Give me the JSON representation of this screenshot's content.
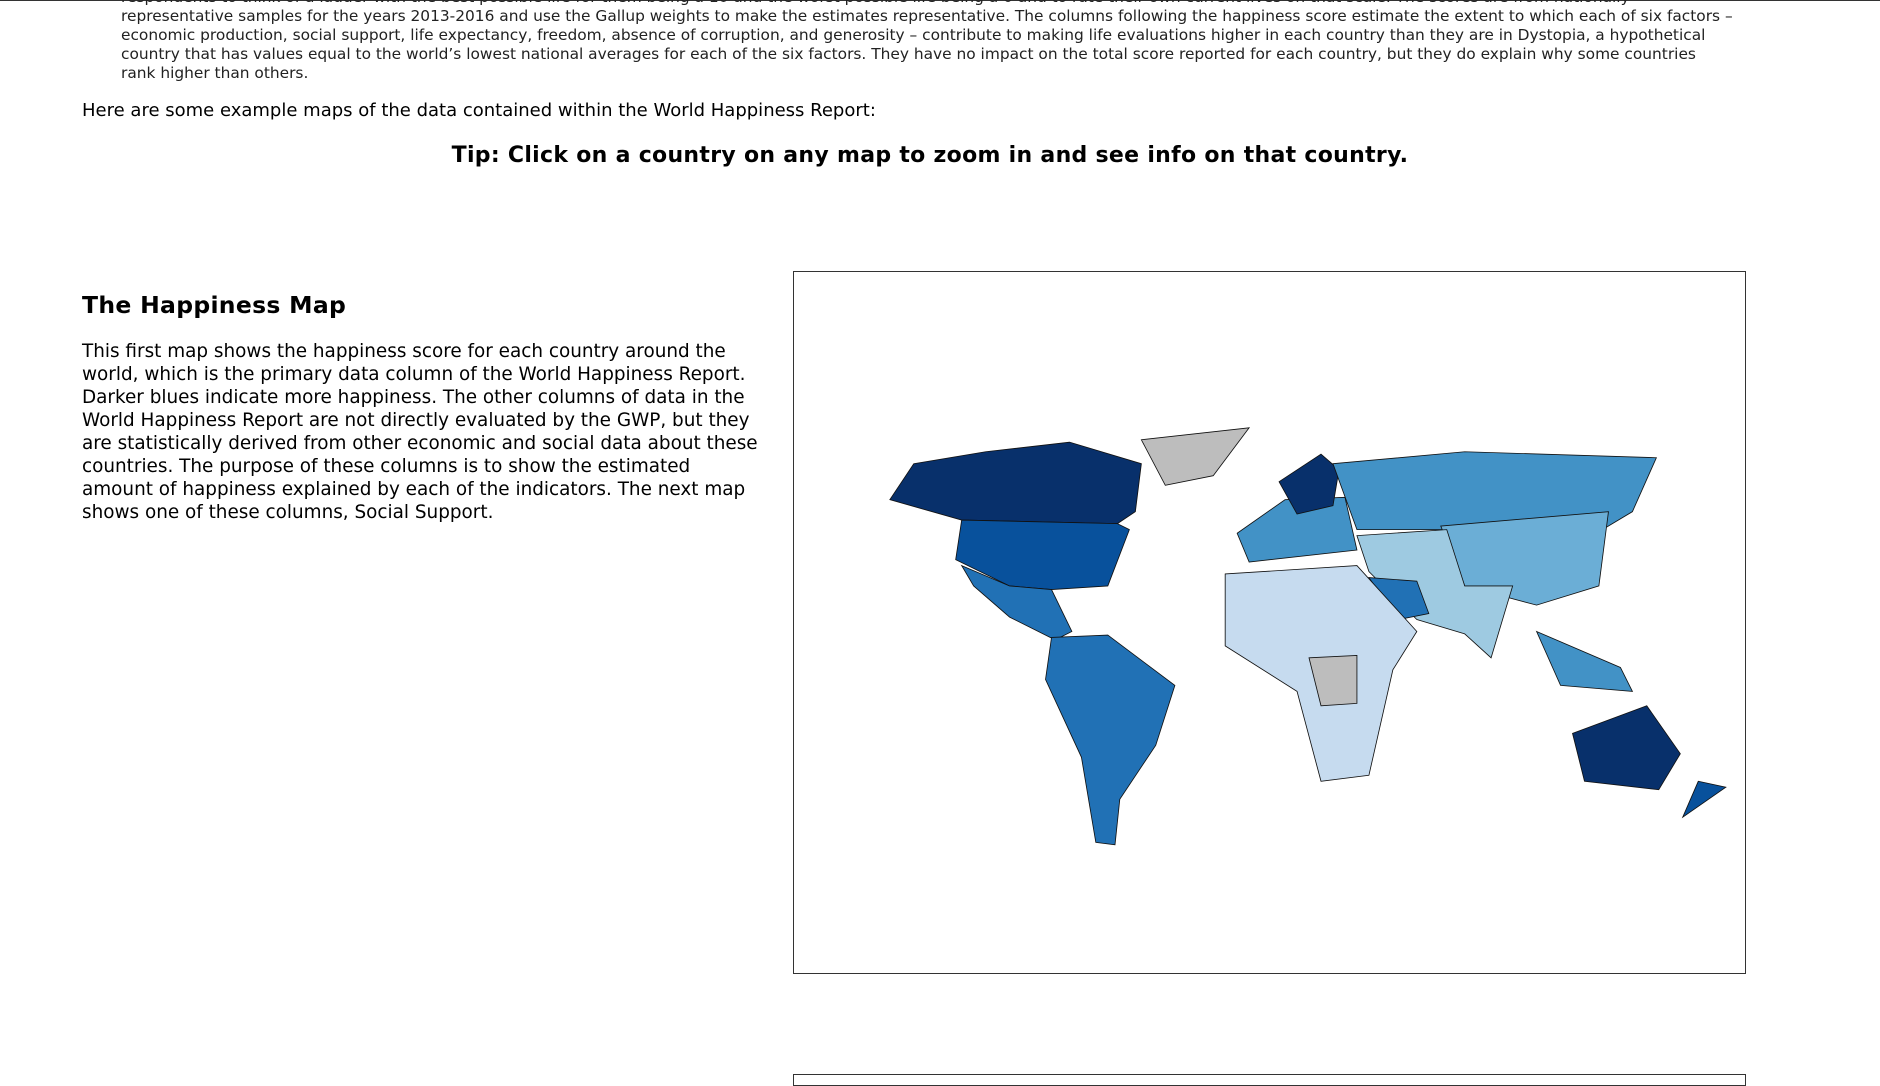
{
  "intro": {
    "text": "respondents to think of a ladder with the best possible life for them being a 10 and the worst possible life being a 0 and to rate their own current lives on that scale. The scores are from nationally representative samples for the years 2013-2016 and use the Gallup weights to make the estimates representative. The columns following the happiness score estimate the extent to which each of six factors – economic production, social support, life expectancy, freedom, absence of corruption, and generosity – contribute to making life evaluations higher in each country than they are in Dystopia, a hypothetical country that has values equal to the world’s lowest national averages for each of the six factors. They have no impact on the total score reported for each country, but they do explain why some countries rank higher than others."
  },
  "maps_intro": "Here are some example maps of the data contained within the World Happiness Report:",
  "tip": "Tip: Click on a country on any map to zoom in and see info on that country.",
  "section": {
    "heading": "The Happiness Map",
    "body": "This first map shows the happiness score for each country around the world, which is the primary data column of the World Happiness Report. Darker blues indicate more happiness. The other columns of data in the World Happiness Report are not directly evaluated by the GWP, but they are statistically derived from other economic and social data about these countries. The purpose of these columns is to show the estimated amount of happiness explained by each of the indicators. The next map shows one of these columns, Social Support."
  }
}
